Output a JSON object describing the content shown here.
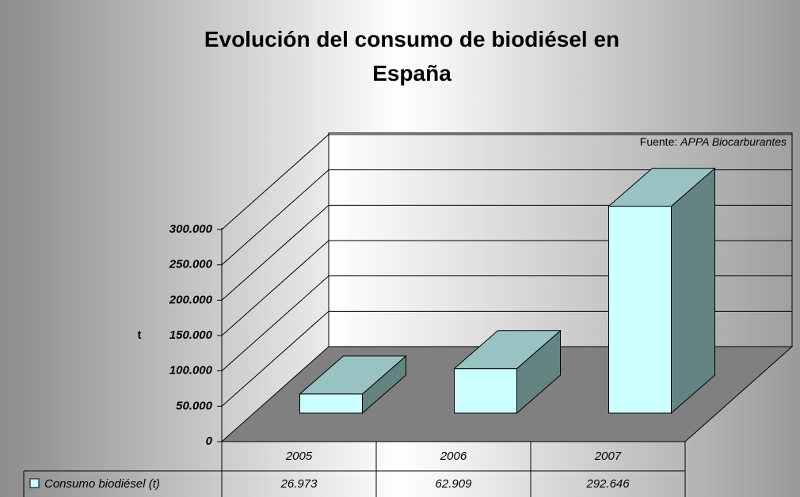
{
  "chart_data": {
    "type": "bar3d",
    "title": "Evolución del consumo de biodiésel en España",
    "source": {
      "label": "Fuente:",
      "name": "APPA Biocarburantes"
    },
    "y_label": "t",
    "categories": [
      "2005",
      "2006",
      "2007"
    ],
    "series": [
      {
        "name": "Consumo biodiésel (t)",
        "color": "#ccffff",
        "values": [
          26973,
          62909,
          292646
        ],
        "value_labels": [
          "26.973",
          "62.909",
          "292.646"
        ]
      }
    ],
    "ylim": [
      0,
      300000
    ],
    "yticks": [
      0,
      {
        "value": 50000,
        "label": "50.000"
      },
      {
        "value": 100000,
        "label": "100.000"
      },
      {
        "value": 150000,
        "label": "150.000"
      },
      {
        "value": 200000,
        "label": "200.000"
      },
      {
        "value": 250000,
        "label": "250.000"
      },
      {
        "value": 300000,
        "label": "300.000"
      }
    ],
    "grid": true,
    "data_table": true
  }
}
